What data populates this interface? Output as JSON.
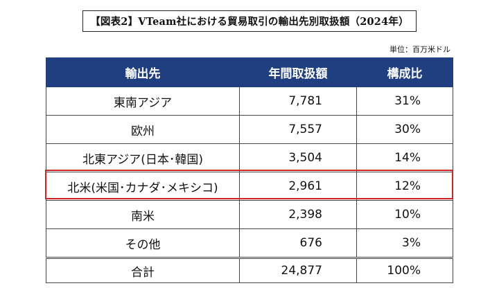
{
  "title": "【図表2】VTeam社における貿易取引の輸出先別取扱額（2024年）",
  "unit": "単位：百万米ドル",
  "table": {
    "headers": [
      "輸出先",
      "年間取扱額",
      "構成比"
    ],
    "rows": [
      {
        "destination": "東南アジア",
        "amount": "7,781",
        "ratio": "31%"
      },
      {
        "destination": "欧州",
        "amount": "7,557",
        "ratio": "30%"
      },
      {
        "destination": "北東アジア(日本･韓国)",
        "amount": "3,504",
        "ratio": "14%"
      },
      {
        "destination": "北米(米国･カナダ･メキシコ)",
        "amount": "2,961",
        "ratio": "12%"
      },
      {
        "destination": "南米",
        "amount": "2,398",
        "ratio": "10%"
      },
      {
        "destination": "その他",
        "amount": "676",
        "ratio": "3%"
      }
    ],
    "total": {
      "label": "合計",
      "amount": "24,877",
      "ratio": "100%"
    }
  },
  "highlight_color": "#d32222",
  "header_color": "#1f3f80"
}
